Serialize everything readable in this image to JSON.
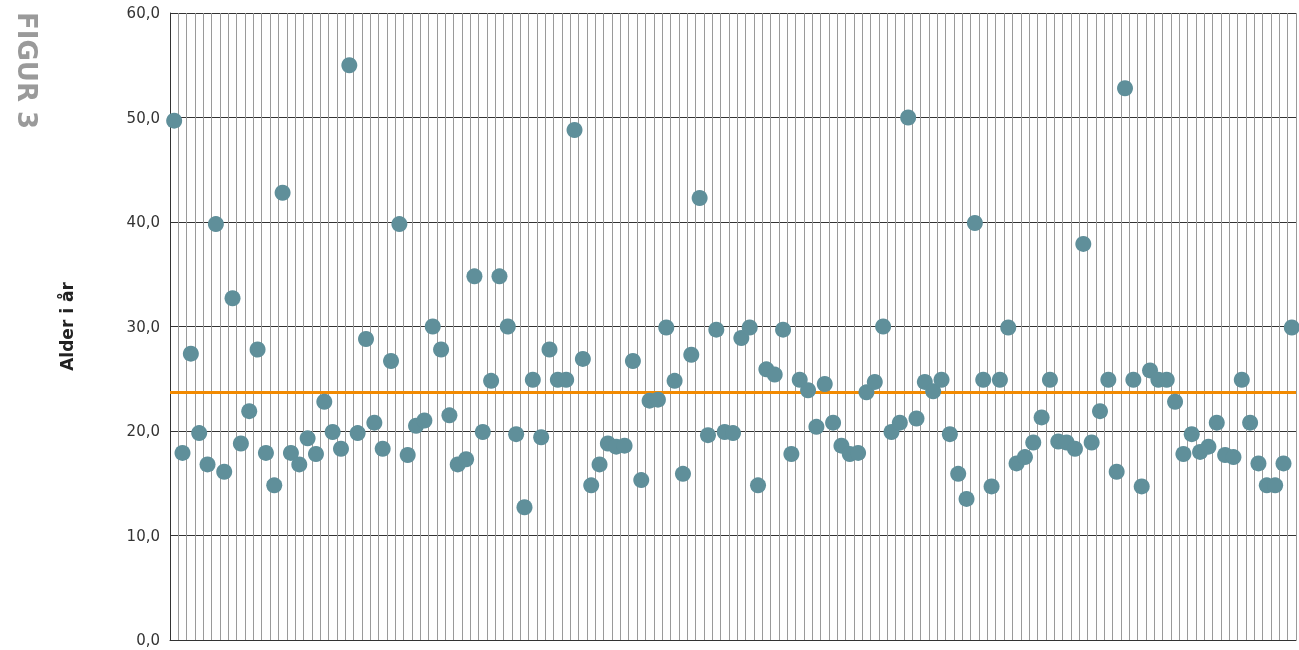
{
  "chart_data": {
    "type": "scatter",
    "title": "FIGUR 3",
    "ylabel": "Alder i år",
    "categories": [
      null,
      null,
      null,
      null,
      null,
      null,
      null,
      null,
      null,
      null,
      null,
      null,
      null,
      null,
      null,
      null,
      null,
      null,
      null,
      null,
      null,
      null,
      null,
      null,
      null,
      null,
      null,
      null,
      null,
      null,
      null,
      null,
      null,
      null,
      null,
      null,
      null,
      null,
      null,
      null,
      null,
      null,
      null,
      null,
      null,
      null,
      null,
      null,
      null,
      null,
      null,
      null,
      null,
      null,
      null,
      null,
      null,
      null,
      null,
      null,
      null,
      null,
      null,
      null,
      null,
      null,
      null,
      null,
      null,
      null,
      null,
      null,
      null,
      null,
      null,
      null,
      null,
      null,
      null,
      null,
      null,
      null,
      null,
      null,
      null,
      null,
      null,
      null,
      null,
      null,
      null,
      null,
      null,
      null,
      null,
      null,
      null,
      null,
      null,
      null,
      null,
      null,
      null,
      null,
      null,
      null,
      null,
      null,
      null,
      null,
      null,
      null,
      null,
      null,
      null,
      null,
      null,
      null,
      null,
      null,
      null,
      null,
      null,
      null,
      null,
      null,
      null,
      null,
      null,
      null,
      null,
      null,
      null,
      null,
      null
    ],
    "series": [
      {
        "color": "#5f8f9a",
        "values": [
          49.7,
          17.9,
          27.4,
          19.8,
          16.8,
          39.8,
          16.1,
          32.7,
          18.8,
          21.9,
          27.8,
          17.9,
          14.8,
          42.8,
          17.9,
          16.8,
          19.3,
          17.8,
          22.8,
          19.9,
          18.3,
          55.0,
          19.8,
          28.8,
          20.8,
          18.3,
          26.7,
          39.8,
          17.7,
          20.5,
          21.0,
          30.0,
          27.8,
          21.5,
          16.8,
          17.3,
          34.8,
          19.9,
          24.8,
          34.8,
          30.0,
          19.7,
          12.7,
          24.9,
          19.4,
          27.8,
          24.9,
          24.9,
          48.8,
          26.9,
          14.8,
          16.8,
          18.8,
          18.5,
          18.6,
          26.7,
          15.3,
          22.9,
          23.0,
          29.9,
          24.8,
          15.9,
          27.3,
          42.3,
          19.6,
          29.7,
          19.9,
          19.8,
          28.9,
          29.9,
          14.8,
          25.9,
          25.4,
          29.7,
          17.8,
          24.9,
          23.9,
          20.4,
          24.5,
          20.8,
          18.6,
          17.8,
          17.9,
          23.7,
          24.7,
          30.0,
          19.9,
          20.8,
          50.0,
          21.2,
          24.7,
          23.8,
          24.9,
          19.7,
          15.9,
          13.5,
          39.9,
          24.9,
          14.7,
          24.9,
          29.9,
          16.9,
          17.5,
          18.9,
          21.3,
          24.9,
          19.0,
          18.9,
          18.3,
          37.9,
          18.9,
          21.9,
          24.9,
          16.1,
          52.8,
          24.9,
          14.7,
          25.8,
          24.9,
          24.9,
          22.8,
          17.8,
          19.7,
          18.0,
          18.5,
          20.8,
          17.7,
          17.5,
          24.9,
          20.8,
          16.9,
          14.8,
          14.8,
          16.9,
          29.9
        ]
      }
    ],
    "ylim": [
      0,
      60
    ],
    "yticks": [
      {
        "value": 0,
        "label": "0,0"
      },
      {
        "value": 10,
        "label": "10,0"
      },
      {
        "value": 20,
        "label": "20,0"
      },
      {
        "value": 30,
        "label": "30,0"
      },
      {
        "value": 40,
        "label": "40,0"
      },
      {
        "value": 50,
        "label": "50,0"
      },
      {
        "value": 60,
        "label": "60,0"
      }
    ],
    "ref_lines": [
      {
        "axis": "y",
        "value": 23.7,
        "color": "#f28a00"
      }
    ],
    "grid": true,
    "marker": "circle",
    "tick_labels": "y"
  }
}
